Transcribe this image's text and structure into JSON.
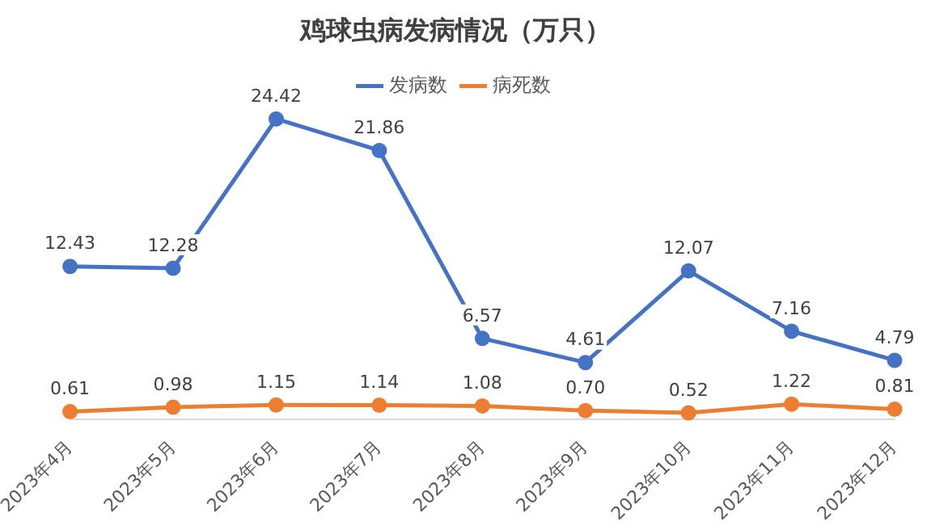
{
  "chart_data": {
    "type": "line",
    "title": "鸡球虫病发病情况（万只）",
    "categories": [
      "2023年4月",
      "2023年5月",
      "2023年6月",
      "2023年7月",
      "2023年8月",
      "2023年9月",
      "2023年10月",
      "2023年11月",
      "2023年12月"
    ],
    "series": [
      {
        "name": "发病数",
        "color": "#4472c4",
        "values": [
          12.43,
          12.28,
          24.42,
          21.86,
          6.57,
          4.61,
          12.07,
          7.16,
          4.79
        ],
        "value_labels": [
          "12.43",
          "12.28",
          "24.42",
          "21.86",
          "6.57",
          "4.61",
          "12.07",
          "7.16",
          "4.79"
        ]
      },
      {
        "name": "病死数",
        "color": "#ed7d31",
        "values": [
          0.61,
          0.98,
          1.15,
          1.14,
          1.08,
          0.7,
          0.52,
          1.22,
          0.81
        ],
        "value_labels": [
          "0.61",
          "0.98",
          "1.15",
          "1.14",
          "1.08",
          "0.70",
          "0.52",
          "1.22",
          "0.81"
        ]
      }
    ],
    "legend": "top",
    "marker": "circle",
    "line_style": "solid",
    "grid": false,
    "tick_labels": "x"
  }
}
